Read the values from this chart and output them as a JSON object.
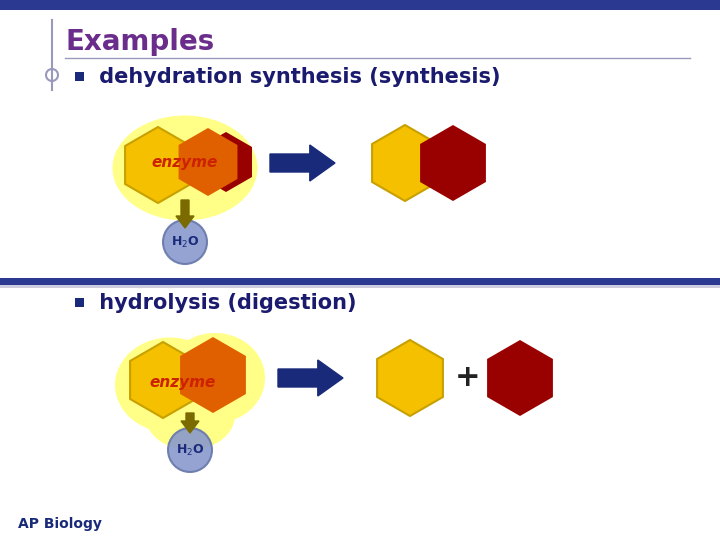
{
  "bg_color": "#ffffff",
  "top_bar_color": "#2b3990",
  "title": "Examples",
  "title_color": "#6b2d8b",
  "title_fontsize": 20,
  "bullet_color": "#1a2a7a",
  "section1_text": " dehydration synthesis (synthesis)",
  "section2_text": " hydrolysis (digestion)",
  "section_fontsize": 15,
  "section_color": "#1a1a6e",
  "enzyme_color": "#cc2200",
  "hex_yellow": "#f5c000",
  "hex_orange": "#e06000",
  "hex_dark_red": "#990000",
  "arrow_color": "#1a2a7a",
  "h2o_fill": "#8899cc",
  "h2o_text_color": "#1a2a7a",
  "glow_color": "#ffff88",
  "ap_biology_color": "#1a2a7a",
  "divider_color": "#2b3990",
  "accent_line_color": "#9999bb",
  "down_arrow_color": "#7a6a00"
}
